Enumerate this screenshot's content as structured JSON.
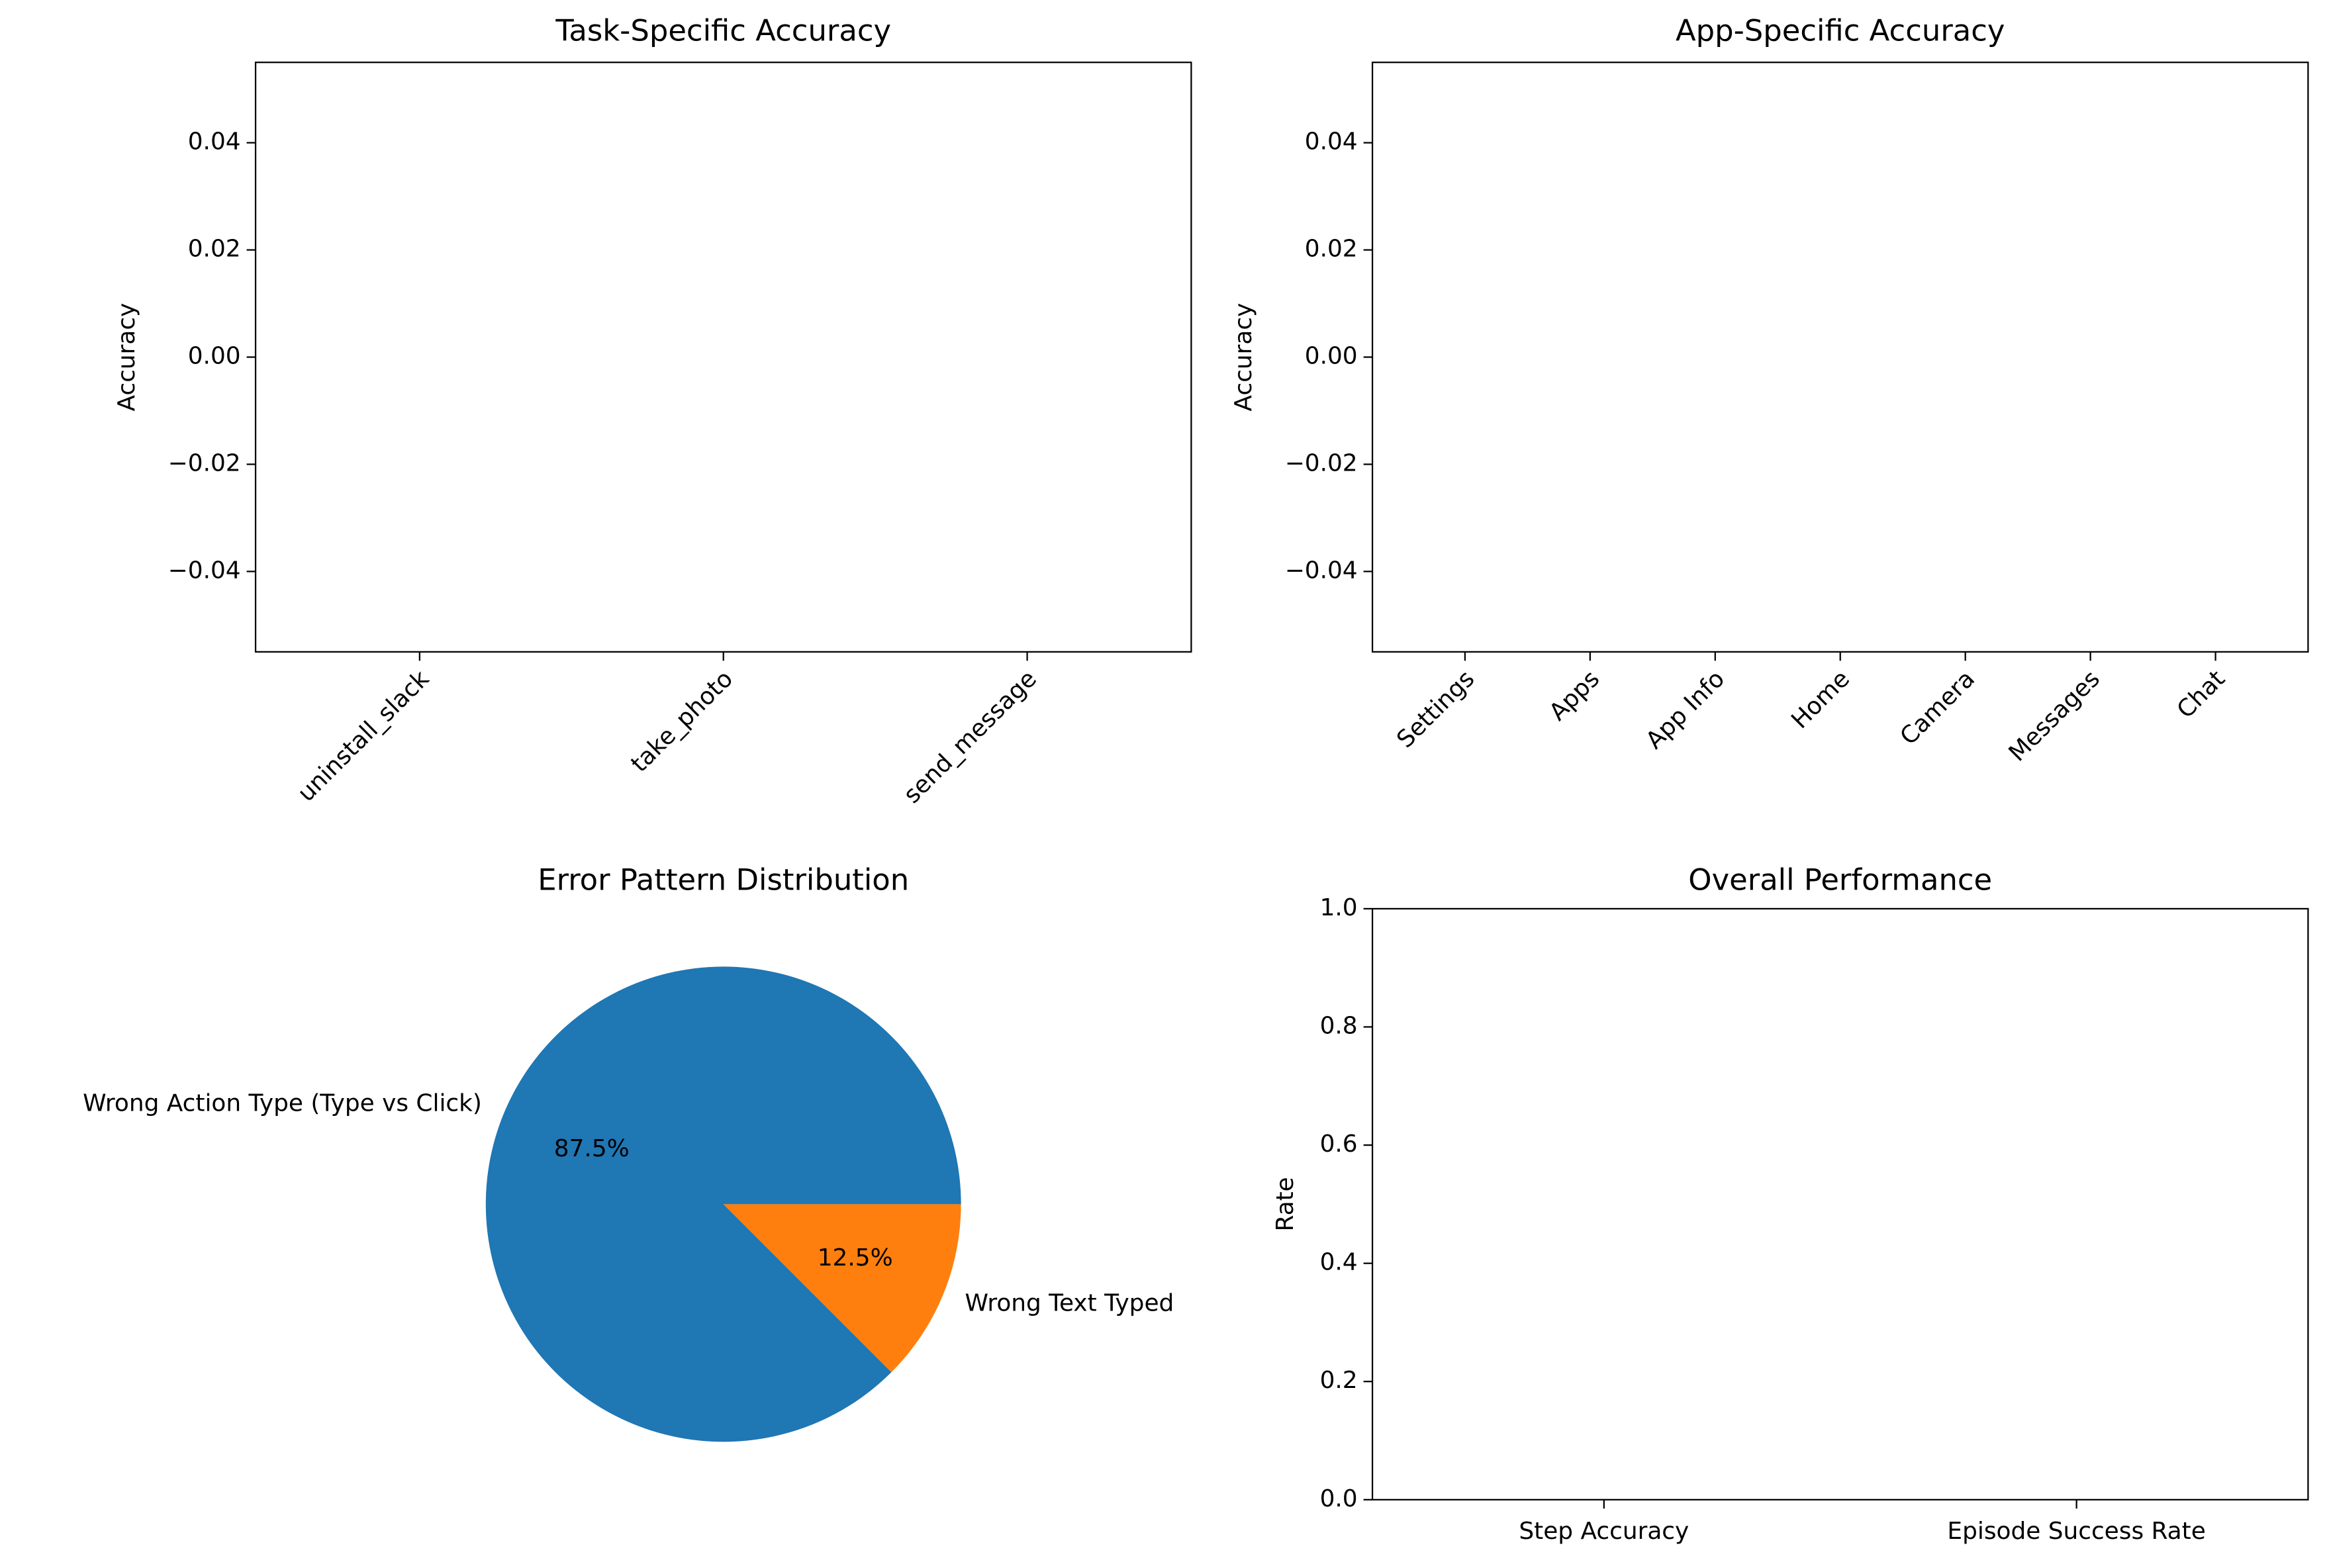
{
  "chart_data": [
    {
      "type": "bar",
      "title": "Task-Specific Accuracy",
      "ylabel": "Accuracy",
      "categories": [
        "uninstall_slack",
        "take_photo",
        "send_message"
      ],
      "values": [
        0,
        0,
        0
      ],
      "color": "#1f77b4",
      "ylim": [
        -0.055,
        0.055
      ],
      "yticks": [
        {
          "value": -0.04,
          "label": "−0.04"
        },
        {
          "value": -0.02,
          "label": "−0.02"
        },
        {
          "value": 0,
          "label": "0.00"
        },
        0.02,
        0.04
      ],
      "xtick_rotation": 45
    },
    {
      "type": "bar",
      "title": "App-Specific Accuracy",
      "ylabel": "Accuracy",
      "categories": [
        "Settings",
        "Apps",
        "App Info",
        "Home",
        "Camera",
        "Messages",
        "Chat"
      ],
      "values": [
        0,
        0,
        0,
        0,
        0,
        0,
        0
      ],
      "color": "#1f77b4",
      "ylim": [
        -0.055,
        0.055
      ],
      "yticks": [
        {
          "value": -0.04,
          "label": "−0.04"
        },
        {
          "value": -0.02,
          "label": "−0.02"
        },
        {
          "value": 0,
          "label": "0.00"
        },
        0.02,
        0.04
      ],
      "xtick_rotation": 45
    },
    {
      "type": "pie",
      "title": "Error Pattern Distribution",
      "categories": [
        "Wrong Action Type (Type vs Click)",
        "Wrong Text Typed"
      ],
      "values": [
        87.5,
        12.5
      ],
      "value_labels": [
        "87.5%",
        "12.5%"
      ],
      "colors": [
        "#1f77b4",
        "#ff7f0e"
      ]
    },
    {
      "type": "bar",
      "title": "Overall Performance",
      "ylabel": "Rate",
      "categories": [
        "Step Accuracy",
        "Episode Success Rate"
      ],
      "values": [
        0,
        0
      ],
      "color": "#1f77b4",
      "ylim": [
        0,
        1
      ],
      "yticks": [
        {
          "value": 0,
          "label": "0.0"
        },
        0.2,
        0.4,
        0.6,
        0.8,
        {
          "value": 1,
          "label": "1.0"
        }
      ],
      "xtick_rotation": 0
    }
  ]
}
